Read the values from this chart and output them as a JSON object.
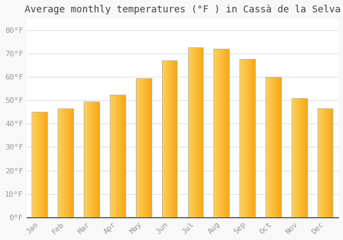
{
  "title": "Average monthly temperatures (°F ) in Cassà de la Selva",
  "months": [
    "Jan",
    "Feb",
    "Mar",
    "Apr",
    "May",
    "Jun",
    "Jul",
    "Aug",
    "Sep",
    "Oct",
    "Nov",
    "Dec"
  ],
  "values": [
    45,
    46.5,
    49.5,
    52.5,
    59.5,
    67,
    72.5,
    72,
    67.5,
    60,
    51,
    46.5
  ],
  "bar_color_left": "#FFD060",
  "bar_color_right": "#F5A800",
  "edge_color": "#BBBBBB",
  "background_color": "#F8F8F8",
  "plot_bg_color": "#FFFFFF",
  "grid_color": "#E0E0E0",
  "yticks": [
    0,
    10,
    20,
    30,
    40,
    50,
    60,
    70,
    80
  ],
  "ytick_labels": [
    "0°F",
    "10°F",
    "20°F",
    "30°F",
    "40°F",
    "50°F",
    "60°F",
    "70°F",
    "80°F"
  ],
  "ylim": [
    0,
    85
  ],
  "title_fontsize": 10,
  "tick_fontsize": 8,
  "font_color": "#999999"
}
